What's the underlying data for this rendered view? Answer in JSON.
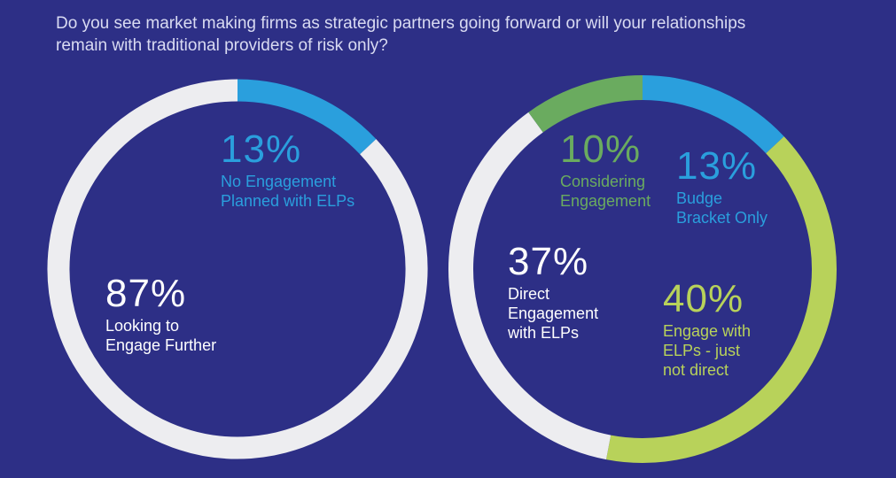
{
  "title": "Do you see market making firms as strategic partners going forward or will your relationships remain with traditional providers of risk only?",
  "colors": {
    "background": "#2d2f86",
    "track": "#ededf0",
    "blue": "#2a9fdd",
    "green": "#6aab5f",
    "lime": "#b8d25a",
    "white": "#ffffff"
  },
  "chart_data": [
    {
      "type": "pie",
      "variant": "donut",
      "slices": [
        {
          "label_pct": "13%",
          "label_text": "No Engagement\nPlanned with ELPs",
          "value": 13,
          "color": "#2a9fdd",
          "text_color": "blue"
        },
        {
          "label_pct": "87%",
          "label_text": "Looking to\nEngage Further",
          "value": 87,
          "color": "#ededf0",
          "text_color": "white"
        }
      ]
    },
    {
      "type": "pie",
      "variant": "donut",
      "slices": [
        {
          "label_pct": "13%",
          "label_text": "Budge\nBracket Only",
          "value": 13,
          "color": "#2a9fdd",
          "text_color": "blue"
        },
        {
          "label_pct": "40%",
          "label_text": "Engage with\nELPs - just\nnot direct",
          "value": 40,
          "color": "#b8d25a",
          "text_color": "lime"
        },
        {
          "label_pct": "37%",
          "label_text": "Direct\nEngagement\nwith ELPs",
          "value": 37,
          "color": "#ededf0",
          "text_color": "white"
        },
        {
          "label_pct": "10%",
          "label_text": "Considering\nEngagement",
          "value": 10,
          "color": "#6aab5f",
          "text_color": "green"
        }
      ]
    }
  ]
}
